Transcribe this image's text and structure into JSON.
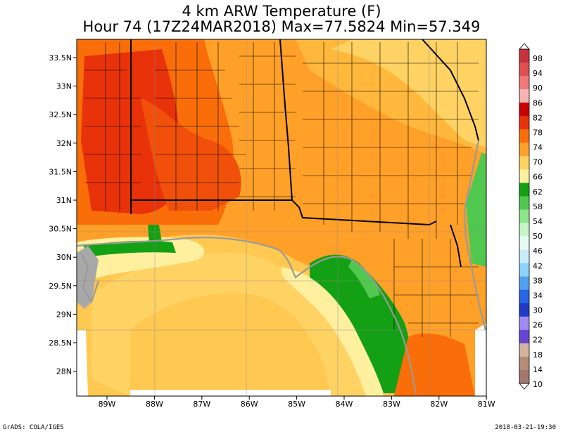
{
  "title": {
    "line1": "4 km ARW Temperature (F)",
    "line2": "Hour 74 (17Z24MAR2018) Max=77.5824 Min=57.349"
  },
  "axes": {
    "lat_labels": [
      "33.5N",
      "33N",
      "32.5N",
      "32N",
      "31.5N",
      "31N",
      "30.5N",
      "30N",
      "29.5N",
      "29N",
      "28.5N",
      "28N"
    ],
    "lon_labels": [
      "89W",
      "88W",
      "87W",
      "86W",
      "85W",
      "84W",
      "83W",
      "82W",
      "81W"
    ]
  },
  "colorbar": {
    "labels": [
      "98",
      "94",
      "90",
      "86",
      "82",
      "78",
      "74",
      "70",
      "66",
      "62",
      "58",
      "54",
      "50",
      "46",
      "42",
      "38",
      "34",
      "30",
      "26",
      "22",
      "18",
      "14",
      "10"
    ],
    "colors": [
      "#c8323c",
      "#e05050",
      "#f07878",
      "#f8b4b4",
      "#c80000",
      "#e8320a",
      "#fa6e0a",
      "#ffa028",
      "#ffd264",
      "#fff0a0",
      "#14a014",
      "#50c850",
      "#8ce68c",
      "#c8f5c8",
      "#e6faf5",
      "#c8ebfa",
      "#8cd2fa",
      "#50a0f0",
      "#2864e6",
      "#1e3cc8",
      "#a08cf0",
      "#6446d2",
      "#d2b4a0",
      "#b48c78",
      "#a0786e"
    ]
  },
  "footer": {
    "left": "GrADS: COLA/IGES",
    "right": "2018-03-21-19:30"
  }
}
